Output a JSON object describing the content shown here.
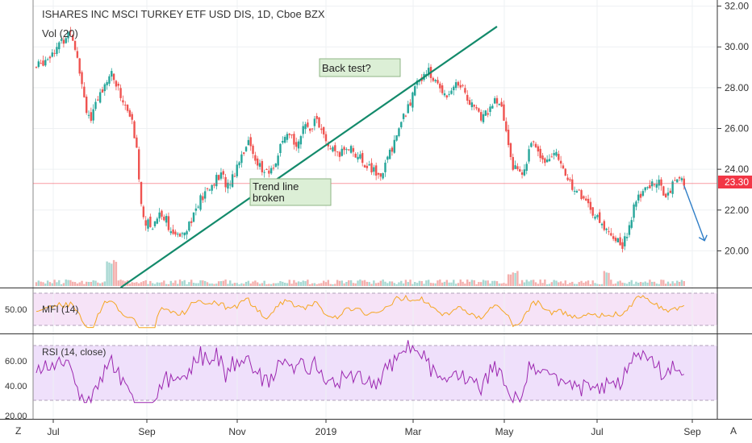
{
  "header": {
    "title": "ISHARES INC MSCI TURKEY ETF USD DIS, 1D, Cboe BZX",
    "volume_label": "Vol (20)"
  },
  "price_axis": {
    "ticks": [
      "32.00",
      "30.00",
      "28.00",
      "26.00",
      "24.00",
      "22.00",
      "20.00"
    ],
    "current_price": "23.30",
    "current_price_color": "#f23645"
  },
  "time_axis": {
    "ticks": [
      "Jul",
      "Sep",
      "Nov",
      "2019",
      "Mar",
      "May",
      "Jul",
      "Sep"
    ],
    "left_button": "Z",
    "right_button": "A"
  },
  "annotations": {
    "trend_broken": "Trend line broken",
    "back_test": "Back test?"
  },
  "mfi": {
    "label": "MFI (14)",
    "ticks": [
      "50.00"
    ],
    "color": "#f5a623"
  },
  "rsi": {
    "label": "RSI (14, close)",
    "ticks": [
      "60.00",
      "40.00",
      "20.00"
    ],
    "color": "#9c27b0"
  },
  "chart_data": {
    "type": "candlestick",
    "title": "ISHARES INC MSCI TURKEY ETF USD DIS, 1D, Cboe BZX",
    "x_ticks": [
      "Jul",
      "Sep",
      "Nov",
      "2019",
      "Mar",
      "May",
      "Jul",
      "Sep"
    ],
    "y_ticks": [
      32.0,
      30.0,
      28.0,
      26.0,
      24.0,
      22.0,
      20.0
    ],
    "ylim": [
      18.2,
      32.3
    ],
    "last_price": 23.3,
    "price_path": [
      [
        0,
        29.0
      ],
      [
        4,
        29.4
      ],
      [
        8,
        29.9
      ],
      [
        12,
        30.3
      ],
      [
        15,
        30.9
      ],
      [
        18,
        29.6
      ],
      [
        20,
        28.2
      ],
      [
        22,
        27.0
      ],
      [
        24,
        26.4
      ],
      [
        27,
        27.4
      ],
      [
        30,
        28.3
      ],
      [
        33,
        28.7
      ],
      [
        36,
        27.9
      ],
      [
        39,
        27.1
      ],
      [
        42,
        26.3
      ],
      [
        44,
        24.9
      ],
      [
        46,
        22.3
      ],
      [
        48,
        21.4
      ],
      [
        51,
        21.2
      ],
      [
        54,
        21.9
      ],
      [
        57,
        21.6
      ],
      [
        60,
        20.6
      ],
      [
        63,
        20.9
      ],
      [
        66,
        21.2
      ],
      [
        69,
        21.8
      ],
      [
        72,
        22.5
      ],
      [
        75,
        22.9
      ],
      [
        78,
        23.4
      ],
      [
        81,
        23.7
      ],
      [
        84,
        23.2
      ],
      [
        87,
        23.9
      ],
      [
        90,
        24.8
      ],
      [
        93,
        25.3
      ],
      [
        96,
        24.6
      ],
      [
        99,
        23.9
      ],
      [
        102,
        23.8
      ],
      [
        105,
        24.4
      ],
      [
        108,
        25.3
      ],
      [
        111,
        25.6
      ],
      [
        114,
        25.3
      ],
      [
        117,
        25.9
      ],
      [
        120,
        26.1
      ],
      [
        123,
        26.5
      ],
      [
        126,
        25.5
      ],
      [
        129,
        25.0
      ],
      [
        132,
        24.6
      ],
      [
        135,
        25.0
      ],
      [
        138,
        25.1
      ],
      [
        141,
        24.6
      ],
      [
        144,
        24.3
      ],
      [
        147,
        24.0
      ],
      [
        150,
        23.6
      ],
      [
        153,
        24.2
      ],
      [
        156,
        25.1
      ],
      [
        159,
        26.0
      ],
      [
        162,
        26.8
      ],
      [
        165,
        27.6
      ],
      [
        168,
        28.4
      ],
      [
        171,
        28.9
      ],
      [
        174,
        28.4
      ],
      [
        177,
        28.0
      ],
      [
        180,
        27.7
      ],
      [
        183,
        28.1
      ],
      [
        186,
        28.2
      ],
      [
        189,
        27.5
      ],
      [
        192,
        27.0
      ],
      [
        195,
        26.5
      ],
      [
        198,
        26.9
      ],
      [
        201,
        27.3
      ],
      [
        204,
        27.0
      ],
      [
        206,
        25.8
      ],
      [
        209,
        24.2
      ],
      [
        212,
        23.7
      ],
      [
        215,
        24.5
      ],
      [
        218,
        25.4
      ],
      [
        221,
        24.8
      ],
      [
        224,
        24.4
      ],
      [
        227,
        24.9
      ],
      [
        230,
        24.1
      ],
      [
        233,
        23.6
      ],
      [
        236,
        23.0
      ],
      [
        239,
        22.7
      ],
      [
        242,
        22.3
      ],
      [
        245,
        21.7
      ],
      [
        248,
        21.2
      ],
      [
        251,
        21.0
      ],
      [
        254,
        20.6
      ],
      [
        257,
        20.2
      ],
      [
        260,
        21.3
      ],
      [
        263,
        22.4
      ],
      [
        266,
        22.9
      ],
      [
        269,
        23.1
      ],
      [
        272,
        23.5
      ],
      [
        275,
        22.8
      ],
      [
        278,
        23.0
      ],
      [
        281,
        23.5
      ],
      [
        284,
        23.3
      ]
    ],
    "trend_line": {
      "from": [
        37,
        18.2
      ],
      "to": [
        202,
        31.0
      ]
    },
    "forecast_arrow": {
      "from": [
        284,
        23.2
      ],
      "to": [
        293,
        20.5
      ]
    },
    "mfi_range": [
      20,
      80
    ],
    "rsi_range": [
      20,
      70
    ]
  }
}
